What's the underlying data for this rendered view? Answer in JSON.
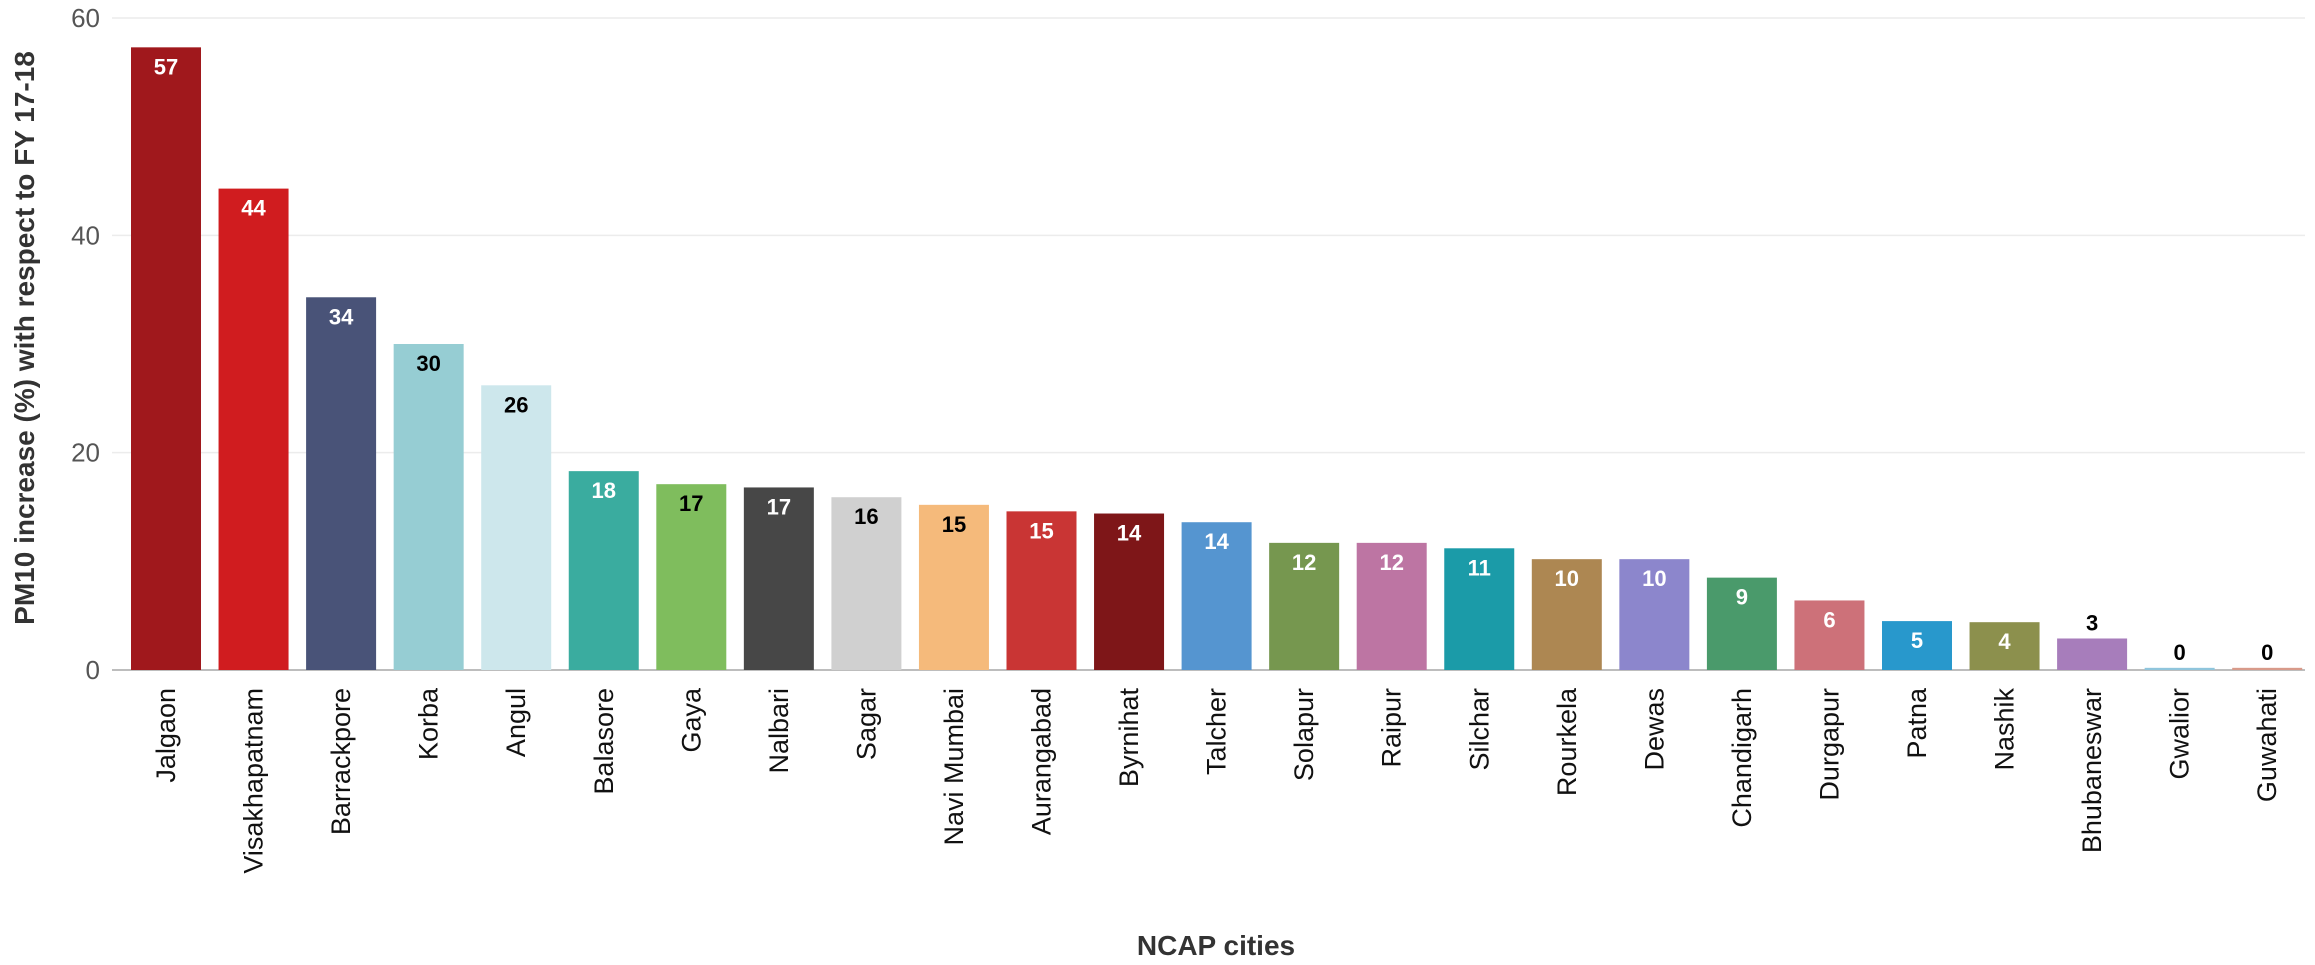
{
  "header": {
    "partial_title": ""
  },
  "chart_data": {
    "type": "bar",
    "title": "",
    "xlabel": "NCAP cities",
    "ylabel": "PM10 increase (%) with respect to FY 17-18",
    "ylim": [
      0,
      60
    ],
    "yticks": [
      0,
      20,
      40,
      60
    ],
    "grid": true,
    "categories": [
      "Jalgaon",
      "Visakhapatnam",
      "Barrackpore",
      "Korba",
      "Angul",
      "Balasore",
      "Gaya",
      "Nalbari",
      "Sagar",
      "Navi Mumbai",
      "Aurangabad",
      "Byrnihat",
      "Talcher",
      "Solapur",
      "Raipur",
      "Silchar",
      "Rourkela",
      "Dewas",
      "Chandigarh",
      "Durgapur",
      "Patna",
      "Nashik",
      "Bhubaneswar",
      "Gwalior",
      "Guwahati"
    ],
    "values": [
      57.3,
      44.3,
      34.3,
      30.0,
      26.2,
      18.3,
      17.1,
      16.8,
      15.9,
      15.2,
      14.6,
      14.4,
      13.6,
      11.7,
      11.7,
      11.2,
      10.2,
      10.2,
      8.5,
      6.4,
      4.5,
      4.4,
      2.9,
      0.2,
      0.2
    ],
    "data_labels": [
      "57",
      "44",
      "34",
      "30",
      "26",
      "18",
      "17",
      "17",
      "16",
      "15",
      "15",
      "14",
      "14",
      "12",
      "12",
      "11",
      "10",
      "10",
      "9",
      "6",
      "5",
      "4",
      "3",
      "0",
      "0"
    ],
    "colors": [
      "#a0181c",
      "#d01c1f",
      "#495378",
      "#96cdd3",
      "#cde7ec",
      "#3aac9f",
      "#7fbd5d",
      "#474747",
      "#d0d0d0",
      "#f5ba7b",
      "#c93534",
      "#7e1618",
      "#5595d0",
      "#76974f",
      "#bd75a3",
      "#1b9ba8",
      "#ad8752",
      "#8c86cc",
      "#4a9a6b",
      "#cd7179",
      "#2898cc",
      "#8c904d",
      "#a77dbb",
      "#8fc5dc",
      "#d89a8a"
    ],
    "label_colors": [
      "#ffffff",
      "#ffffff",
      "#ffffff",
      "#000000",
      "#000000",
      "#ffffff",
      "#000000",
      "#ffffff",
      "#000000",
      "#000000",
      "#ffffff",
      "#ffffff",
      "#ffffff",
      "#ffffff",
      "#ffffff",
      "#ffffff",
      "#ffffff",
      "#ffffff",
      "#ffffff",
      "#ffffff",
      "#ffffff",
      "#ffffff",
      "#000000",
      "#000000",
      "#000000"
    ],
    "label_outside": [
      false,
      false,
      false,
      false,
      false,
      false,
      false,
      false,
      false,
      false,
      false,
      false,
      false,
      false,
      false,
      false,
      false,
      false,
      false,
      false,
      false,
      false,
      true,
      true,
      true
    ]
  }
}
